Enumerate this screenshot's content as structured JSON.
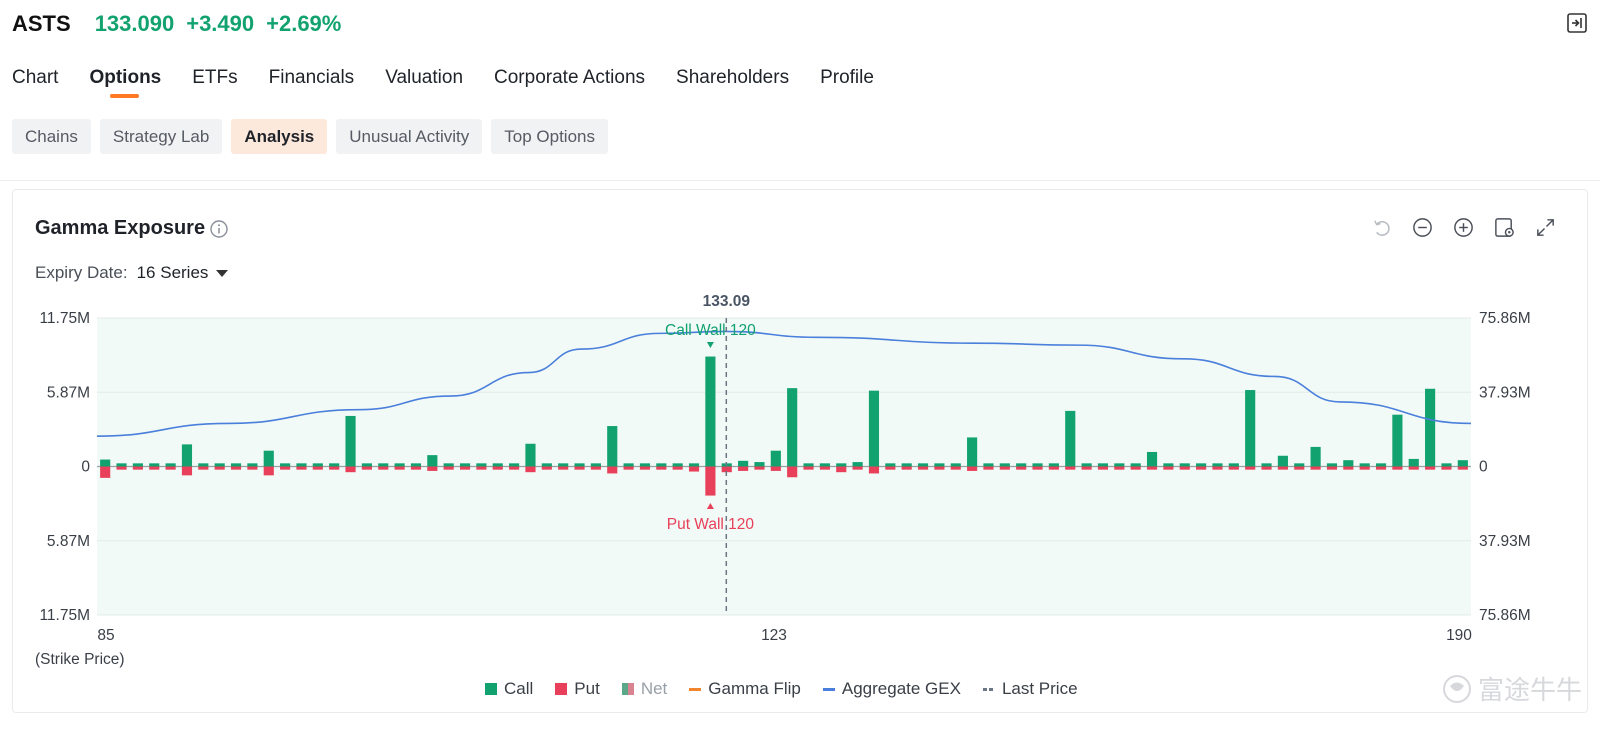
{
  "header": {
    "ticker": "ASTS",
    "price": "133.090",
    "change": "+3.490",
    "change_pct": "+2.69%",
    "quote_color": "#12a26f"
  },
  "nav": {
    "items": [
      {
        "label": "Chart"
      },
      {
        "label": "Options",
        "active": true
      },
      {
        "label": "ETFs"
      },
      {
        "label": "Financials"
      },
      {
        "label": "Valuation"
      },
      {
        "label": "Corporate Actions"
      },
      {
        "label": "Shareholders"
      },
      {
        "label": "Profile"
      }
    ]
  },
  "subnav": {
    "items": [
      {
        "label": "Chains"
      },
      {
        "label": "Strategy Lab"
      },
      {
        "label": "Analysis",
        "active": true
      },
      {
        "label": "Unusual Activity"
      },
      {
        "label": "Top Options"
      }
    ]
  },
  "card": {
    "title": "Gamma Exposure",
    "expiry_label": "Expiry Date:",
    "expiry_value": "16 Series"
  },
  "chart_data": {
    "type": "bar",
    "title": "Gamma Exposure",
    "xlabel": "(Strike Price)",
    "x_ticks": [
      "85",
      "123",
      "190"
    ],
    "x_range": [
      85,
      190
    ],
    "y_left_ticks": [
      "11.75M",
      "5.87M",
      "0",
      "5.87M",
      "11.75M"
    ],
    "y_right_ticks": [
      "75.86M",
      "37.93M",
      "0",
      "37.93M",
      "75.86M"
    ],
    "y_left_range_millions": [
      -11.75,
      11.75
    ],
    "y_right_range_millions": [
      -75.86,
      75.86
    ],
    "last_price": 133.09,
    "last_price_label": "133.09",
    "annotations": {
      "call_wall": "Call Wall 120",
      "put_wall": "Put Wall 120"
    },
    "colors": {
      "call": "#12a26f",
      "put": "#e8405a",
      "aggregate": "#4a7fdc",
      "gamma_flip": "#f0852d",
      "last_price": "#6b7685",
      "plot_bg": "#f1faf6"
    },
    "legend_position": "bottom",
    "legend": [
      "Call",
      "Put",
      "Net",
      "Gamma Flip",
      "Aggregate GEX",
      "Last Price"
    ],
    "series": [
      {
        "name": "Call",
        "values_millions": [
          0.55,
          0.25,
          0.25,
          0.25,
          0.25,
          1.75,
          0.25,
          0.25,
          0.25,
          0.25,
          1.25,
          0.25,
          0.25,
          0.25,
          0.25,
          4.0,
          0.25,
          0.25,
          0.25,
          0.25,
          0.9,
          0.25,
          0.25,
          0.25,
          0.25,
          0.25,
          1.8,
          0.25,
          0.25,
          0.25,
          0.25,
          3.2,
          0.25,
          0.25,
          0.25,
          0.25,
          0.25,
          8.7,
          0.25,
          0.45,
          0.35,
          1.25,
          6.2,
          0.25,
          0.25,
          0.25,
          0.35,
          6.0,
          0.25,
          0.25,
          0.25,
          0.25,
          0.25,
          2.3,
          0.25,
          0.25,
          0.25,
          0.25,
          0.25,
          4.4,
          0.25,
          0.25,
          0.25,
          0.25,
          1.15,
          0.25,
          0.25,
          0.25,
          0.25,
          0.25,
          6.05,
          0.25,
          0.85,
          0.25,
          1.55,
          0.25,
          0.5,
          0.25,
          0.25,
          4.1,
          0.6,
          6.15,
          0.25,
          0.5
        ]
      },
      {
        "name": "Put",
        "values_millions": [
          -0.9,
          -0.25,
          -0.25,
          -0.25,
          -0.25,
          -0.7,
          -0.25,
          -0.25,
          -0.25,
          -0.25,
          -0.7,
          -0.25,
          -0.25,
          -0.25,
          -0.25,
          -0.45,
          -0.25,
          -0.25,
          -0.25,
          -0.25,
          -0.35,
          -0.25,
          -0.25,
          -0.25,
          -0.25,
          -0.25,
          -0.45,
          -0.25,
          -0.25,
          -0.25,
          -0.25,
          -0.55,
          -0.25,
          -0.25,
          -0.25,
          -0.25,
          -0.4,
          -2.3,
          -0.45,
          -0.35,
          -0.25,
          -0.35,
          -0.85,
          -0.25,
          -0.25,
          -0.45,
          -0.25,
          -0.55,
          -0.25,
          -0.25,
          -0.25,
          -0.25,
          -0.25,
          -0.35,
          -0.25,
          -0.25,
          -0.25,
          -0.25,
          -0.25,
          -0.25,
          -0.25,
          -0.25,
          -0.25,
          -0.25,
          -0.25,
          -0.25,
          -0.25,
          -0.25,
          -0.25,
          -0.25,
          -0.25,
          -0.25,
          -0.25,
          -0.25,
          -0.25,
          -0.25,
          -0.25,
          -0.25,
          -0.25,
          -0.25,
          -0.25,
          -0.25,
          -0.25,
          -0.25
        ]
      },
      {
        "name": "Aggregate GEX",
        "points": [
          [
            85,
            15.5
          ],
          [
            95,
            22
          ],
          [
            105,
            29
          ],
          [
            112,
            36
          ],
          [
            118,
            48
          ],
          [
            122,
            60
          ],
          [
            128,
            68
          ],
          [
            133,
            69
          ],
          [
            140,
            66
          ],
          [
            152,
            63
          ],
          [
            160,
            62
          ],
          [
            168,
            55
          ],
          [
            175,
            46
          ],
          [
            180,
            33
          ],
          [
            190,
            22
          ]
        ]
      }
    ]
  },
  "watermark": {
    "text": "富途牛牛"
  }
}
